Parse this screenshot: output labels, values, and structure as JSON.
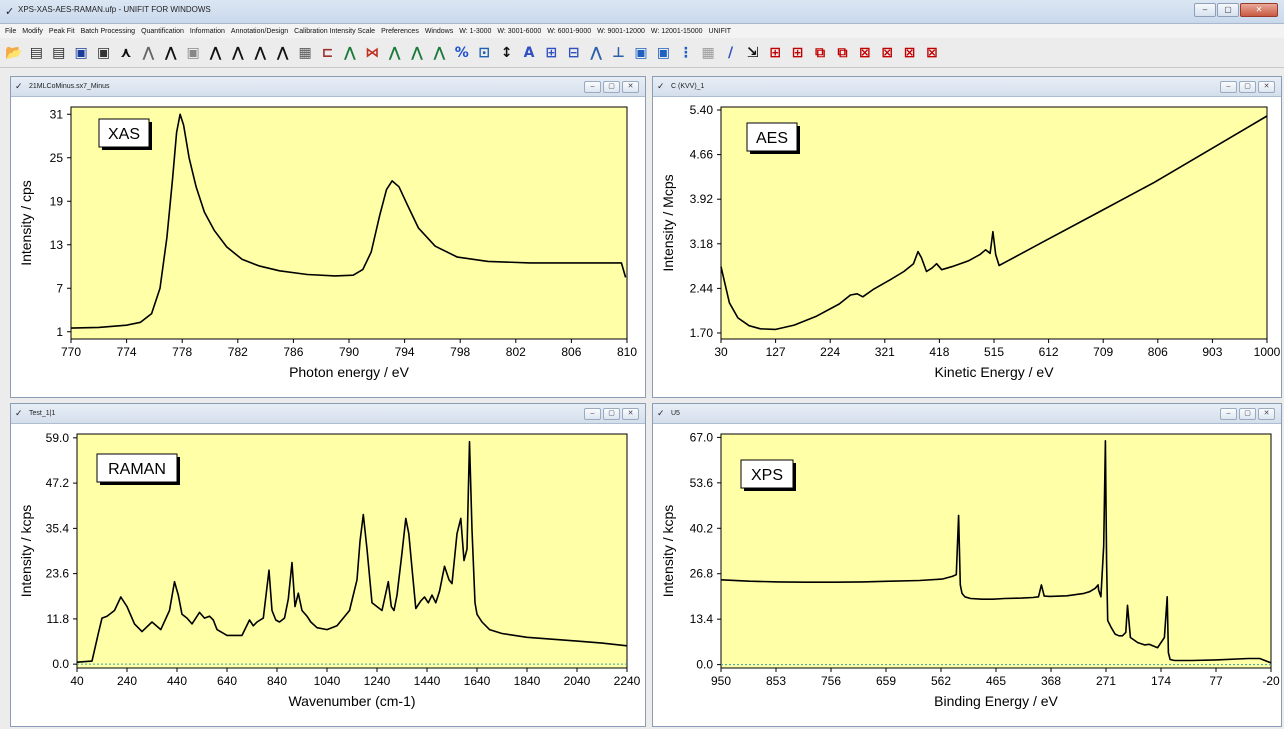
{
  "window": {
    "title": "XPS-XAS-AES-RAMAN.ufp - UNIFIT FOR WINDOWS",
    "controls": [
      "–",
      "▢",
      "✕"
    ]
  },
  "menu": [
    "File",
    "Modify",
    "Peak Fit",
    "Batch Processing",
    "Quantification",
    "Information",
    "Annotation/Design",
    "Calibration Intensity Scale",
    "Preferences",
    "Windows",
    "W: 1-3000",
    "W: 3001-6000",
    "W: 6001-9000",
    "W: 9001-12000",
    "W: 12001-15000",
    "UNIFIT"
  ],
  "toolbar": {
    "icons": [
      {
        "name": "open-icon",
        "glyph": "📂",
        "color": "#222"
      },
      {
        "name": "open-ima-icon",
        "glyph": "▤",
        "color": "#2a2a2a"
      },
      {
        "name": "open-ima-multi-icon",
        "glyph": "▤",
        "color": "#2a2a2a"
      },
      {
        "name": "save-icon",
        "glyph": "▣",
        "color": "#1c3c9c"
      },
      {
        "name": "save-ima-icon",
        "glyph": "▣",
        "color": "#333"
      },
      {
        "name": "add-spectrum-icon",
        "glyph": "⋏",
        "color": "#111"
      },
      {
        "name": "delete-spectrum-icon",
        "glyph": "⋀",
        "color": "#666"
      },
      {
        "name": "spectrum-compare-icon",
        "glyph": "⋀",
        "color": "#111"
      },
      {
        "name": "blank-icon",
        "glyph": "▣",
        "color": "#888"
      },
      {
        "name": "spectrum-edit-icon",
        "glyph": "⋀",
        "color": "#111"
      },
      {
        "name": "spectrum-add-icon",
        "glyph": "⋀",
        "color": "#111"
      },
      {
        "name": "spectrum-subtract-icon",
        "glyph": "⋀",
        "color": "#111"
      },
      {
        "name": "spectrum-multi-icon",
        "glyph": "⋀",
        "color": "#111"
      },
      {
        "name": "spectrum-normalize-icon",
        "glyph": "▦",
        "color": "#555"
      },
      {
        "name": "fermi-edge-icon",
        "glyph": "⊏",
        "color": "#a03030"
      },
      {
        "name": "energy-shift-icon",
        "glyph": "⋀",
        "color": "#1a7a3a"
      },
      {
        "name": "background-icon",
        "glyph": "⋈",
        "color": "#c03020"
      },
      {
        "name": "smoothing-icon",
        "glyph": "⋀",
        "color": "#1a7a3a"
      },
      {
        "name": "differentiation-icon",
        "glyph": "⋀",
        "color": "#1a7a3a"
      },
      {
        "name": "satellite-icon",
        "glyph": "⋀",
        "color": "#1a7a3a"
      },
      {
        "name": "percent-icon",
        "glyph": "%",
        "color": "#1c4fd0"
      },
      {
        "name": "peak-info-icon",
        "glyph": "⊡",
        "color": "#2060b0"
      },
      {
        "name": "intensity-icon",
        "glyph": "↕",
        "color": "#111"
      },
      {
        "name": "annotation-icon",
        "glyph": "A",
        "color": "#3050c0"
      },
      {
        "name": "annotation-list-icon",
        "glyph": "⊞",
        "color": "#3050c0"
      },
      {
        "name": "annotation-edit-icon",
        "glyph": "⊟",
        "color": "#3050c0"
      },
      {
        "name": "aes-icon",
        "glyph": "⋀",
        "color": "#2b5fa8"
      },
      {
        "name": "aes-add-icon",
        "glyph": "⊥",
        "color": "#2b5fa8"
      },
      {
        "name": "des-save-icon",
        "glyph": "▣",
        "color": "#2060c0"
      },
      {
        "name": "des-open-icon",
        "glyph": "▣",
        "color": "#2060c0"
      },
      {
        "name": "layout-icon",
        "glyph": "⋮",
        "color": "#2060c0"
      },
      {
        "name": "grid-toggle-icon",
        "glyph": "▦",
        "color": "#999"
      },
      {
        "name": "ratio-icon",
        "glyph": "/",
        "color": "#3050c0"
      },
      {
        "name": "cursor-icon",
        "glyph": "⇲",
        "color": "#111"
      },
      {
        "name": "tile-1-icon",
        "glyph": "⊞",
        "color": "#c00000"
      },
      {
        "name": "tile-2-icon",
        "glyph": "⊞",
        "color": "#c00000"
      },
      {
        "name": "cascade-icon",
        "glyph": "⧉",
        "color": "#c00000"
      },
      {
        "name": "cascade-2-icon",
        "glyph": "⧉",
        "color": "#c00000"
      },
      {
        "name": "close-all-icon",
        "glyph": "⊠",
        "color": "#c00000"
      },
      {
        "name": "close-all-2-icon",
        "glyph": "⊠",
        "color": "#c00000"
      },
      {
        "name": "close-sel-icon",
        "glyph": "⊠",
        "color": "#c00000"
      },
      {
        "name": "close-s-icon",
        "glyph": "⊠",
        "color": "#c00000"
      }
    ]
  },
  "panels": [
    {
      "id": "xas",
      "window_title": "21MLCoMinus.sx7_Minus",
      "label": "XAS",
      "chart_data": {
        "type": "line",
        "xlabel": "Photon energy / eV",
        "ylabel": "Intensity / cps",
        "xlim": [
          770,
          810
        ],
        "ylim": [
          0,
          32
        ],
        "x_reversed": false,
        "xticks": [
          "770",
          "774",
          "778",
          "782",
          "786",
          "790",
          "794",
          "798",
          "802",
          "806",
          "810"
        ],
        "yticks": [
          "1",
          "7",
          "13",
          "19",
          "25",
          "31"
        ],
        "series": [
          {
            "x": [
              770,
              772,
              774,
              775,
              775.8,
              776.4,
              776.9,
              777.3,
              777.6,
              777.85,
              778.1,
              778.5,
              779,
              779.6,
              780.3,
              781.2,
              782.3,
              783.5,
              785,
              787,
              789,
              790.3,
              791,
              791.6,
              792.2,
              792.7,
              793.1,
              793.6,
              794.2,
              795,
              796.2,
              797.8,
              800,
              803,
              806,
              809.6,
              809.9
            ],
            "y": [
              1.5,
              1.6,
              1.9,
              2.3,
              3.5,
              7,
              14,
              22,
              28.5,
              31,
              29.5,
              25,
              21,
              17.5,
              15,
              12.7,
              11,
              10.1,
              9.4,
              8.9,
              8.7,
              8.8,
              9.6,
              12,
              17,
              20.6,
              21.8,
              21,
              18.5,
              15.3,
              12.8,
              11.3,
              10.7,
              10.5,
              10.5,
              10.5,
              8.5
            ]
          }
        ]
      }
    },
    {
      "id": "aes",
      "window_title": "C (KVV)_1",
      "label": "AES",
      "chart_data": {
        "type": "line",
        "xlabel": "Kinetic Energy / eV",
        "ylabel": "Intensity / Mcps",
        "xlim": [
          30,
          1000
        ],
        "ylim": [
          1.6,
          5.45
        ],
        "x_reversed": false,
        "xticks": [
          "30",
          "127",
          "224",
          "321",
          "418",
          "515",
          "612",
          "709",
          "806",
          "903",
          "1000"
        ],
        "yticks": [
          "1.70",
          "2.44",
          "3.18",
          "3.92",
          "4.66",
          "5.40"
        ],
        "series": [
          {
            "x": [
              30,
              35,
              45,
              60,
              80,
              100,
              127,
              160,
              200,
              240,
              260,
              272,
              282,
              300,
              330,
              355,
              372,
              380,
              386,
              395,
              405,
              413,
              422,
              440,
              470,
              490,
              500,
              508,
              513,
              518,
              524,
              540,
              600,
              700,
              800,
              900,
              1000
            ],
            "y": [
              2.8,
              2.6,
              2.2,
              1.95,
              1.82,
              1.77,
              1.76,
              1.83,
              1.98,
              2.18,
              2.33,
              2.35,
              2.3,
              2.42,
              2.58,
              2.72,
              2.85,
              3.05,
              2.95,
              2.72,
              2.78,
              2.85,
              2.75,
              2.8,
              2.9,
              3.0,
              3.08,
              3.02,
              3.38,
              3.0,
              2.82,
              2.9,
              3.2,
              3.7,
              4.2,
              4.75,
              5.3
            ]
          }
        ]
      }
    },
    {
      "id": "raman",
      "window_title": "Test_1|1",
      "label": "RAMAN",
      "chart_data": {
        "type": "line",
        "xlabel": "Wavenumber (cm-1)",
        "ylabel": "Intensity / kcps",
        "xlim": [
          40,
          2240
        ],
        "ylim": [
          -1,
          60
        ],
        "x_reversed": false,
        "baseline": 0,
        "xticks": [
          "40",
          "240",
          "440",
          "640",
          "840",
          "1040",
          "1240",
          "1440",
          "1640",
          "1840",
          "2040",
          "2240"
        ],
        "yticks": [
          "0.0",
          "11.8",
          "23.6",
          "35.4",
          "47.2",
          "59.0"
        ],
        "series": [
          {
            "x": [
              40,
              100,
              125,
              140,
              160,
              190,
              215,
              240,
              270,
              300,
              340,
              375,
              410,
              430,
              445,
              460,
              480,
              500,
              530,
              550,
              570,
              585,
              600,
              640,
              700,
              730,
              745,
              760,
              785,
              808,
              820,
              835,
              850,
              870,
              885,
              900,
              912,
              925,
              940,
              960,
              975,
              1000,
              1040,
              1080,
              1130,
              1160,
              1172,
              1185,
              1200,
              1220,
              1260,
              1285,
              1297,
              1308,
              1320,
              1340,
              1355,
              1367,
              1380,
              1395,
              1415,
              1430,
              1445,
              1460,
              1475,
              1490,
              1510,
              1528,
              1540,
              1560,
              1575,
              1588,
              1600,
              1610,
              1620,
              1632,
              1640,
              1660,
              1690,
              1740,
              1840,
              1940,
              2040,
              2140,
              2240
            ],
            "y": [
              0.5,
              0.8,
              8,
              12,
              12.5,
              14,
              17.5,
              15,
              10.5,
              8.5,
              11,
              9,
              14,
              21.5,
              18,
              13,
              12,
              10.5,
              13.5,
              12,
              12.5,
              11.5,
              9,
              7.5,
              7.5,
              11.5,
              10,
              11,
              12,
              24.5,
              14,
              11.5,
              11,
              12,
              17,
              26.5,
              15,
              18.5,
              14,
              12.5,
              11,
              9.5,
              9,
              10,
              14,
              22,
              32,
              39,
              30,
              16,
              14,
              21.5,
              15,
              14,
              18,
              29,
              38,
              34,
              25,
              14.5,
              16.5,
              17.5,
              16,
              18,
              16,
              19,
              25.5,
              22,
              21,
              34,
              38,
              27,
              30,
              58,
              35,
              16,
              13,
              11,
              9,
              8,
              7,
              6.5,
              6,
              5.5,
              4.8
            ]
          }
        ]
      }
    },
    {
      "id": "xps",
      "window_title": "U5",
      "label": "XPS",
      "chart_data": {
        "type": "line",
        "xlabel": "Binding Energy / eV",
        "ylabel": "Intensity / kcps",
        "xlim": [
          950,
          -20
        ],
        "ylim": [
          -1,
          68
        ],
        "x_reversed": true,
        "baseline": 0,
        "xticks": [
          "950",
          "853",
          "756",
          "659",
          "562",
          "465",
          "368",
          "271",
          "174",
          "77",
          "-20"
        ],
        "yticks": [
          "0.0",
          "13.4",
          "26.8",
          "40.2",
          "53.6",
          "67.0"
        ],
        "series": [
          {
            "x": [
              950,
              900,
              850,
              800,
              750,
              700,
              650,
              600,
              560,
              542,
              535,
              531,
              528,
              525,
              520,
              510,
              490,
              470,
              450,
              420,
              400,
              390,
              385,
              380,
              370,
              340,
              310,
              300,
              290,
              285,
              284,
              280,
              275,
              272,
              270,
              268,
              262,
              255,
              248,
              242,
              236,
              233,
              228,
              215,
              203,
              195,
              180,
              168,
              163,
              161,
              158,
              150,
              120,
              77,
              20,
              0,
              -20
            ],
            "y": [
              25,
              24.6,
              24.4,
              24.3,
              24.3,
              24.4,
              24.6,
              24.8,
              25.2,
              26,
              26.5,
              44,
              23.5,
              21,
              20,
              19.5,
              19.3,
              19.3,
              19.5,
              19.6,
              19.8,
              20,
              23.5,
              20.2,
              20.1,
              20.3,
              21,
              21.5,
              22.5,
              23.5,
              22,
              20,
              35,
              66,
              30,
              13,
              11,
              9,
              8.5,
              8.5,
              9.5,
              17.5,
              8,
              6.5,
              5.8,
              6,
              5,
              8,
              20,
              3.5,
              1.5,
              1.2,
              1.2,
              1.4,
              1.8,
              1.8,
              0.5
            ]
          }
        ]
      }
    }
  ]
}
